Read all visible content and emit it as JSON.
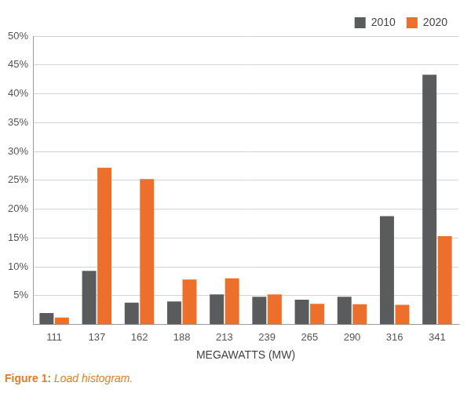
{
  "chart_data": {
    "type": "bar",
    "x_label": "MEGAWATTS (MW)",
    "caption": "Figure 1: Load histogram.",
    "categories": [
      "111",
      "137",
      "162",
      "188",
      "213",
      "239",
      "265",
      "290",
      "316",
      "341"
    ],
    "series": [
      {
        "name": "2010",
        "color": "#5a5b5d",
        "values": [
          2,
          9.3,
          3.8,
          4,
          5.2,
          4.8,
          4.3,
          4.8,
          18.8,
          43.3
        ]
      },
      {
        "name": "2020",
        "color": "#ec6f2c",
        "values": [
          1.2,
          27.2,
          25.2,
          7.8,
          8,
          5.2,
          3.6,
          3.5,
          3.4,
          15.3
        ]
      }
    ],
    "ylim": [
      0,
      50
    ],
    "yticks": [
      {
        "value": 5,
        "label": "5%"
      },
      {
        "value": 10,
        "label": "10%"
      },
      {
        "value": 15,
        "label": "15%"
      },
      {
        "value": 20,
        "label": "20%"
      },
      {
        "value": 25,
        "label": "25%"
      },
      {
        "value": 30,
        "label": "30%"
      },
      {
        "value": 35,
        "label": "35%"
      },
      {
        "value": 40,
        "label": "40%"
      },
      {
        "value": 45,
        "label": "45%"
      },
      {
        "value": 50,
        "label": "50%"
      }
    ],
    "grid": true,
    "legend": "top-right"
  }
}
